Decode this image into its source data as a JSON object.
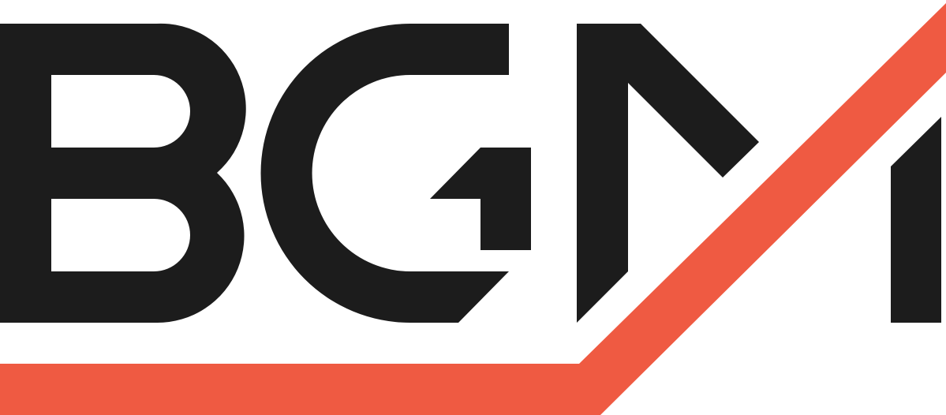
{
  "logo": {
    "wordmark": "BGM",
    "colors": {
      "letters": "#1c1c1c",
      "swoosh": "#ef5a42",
      "background": "#ffffff"
    }
  }
}
